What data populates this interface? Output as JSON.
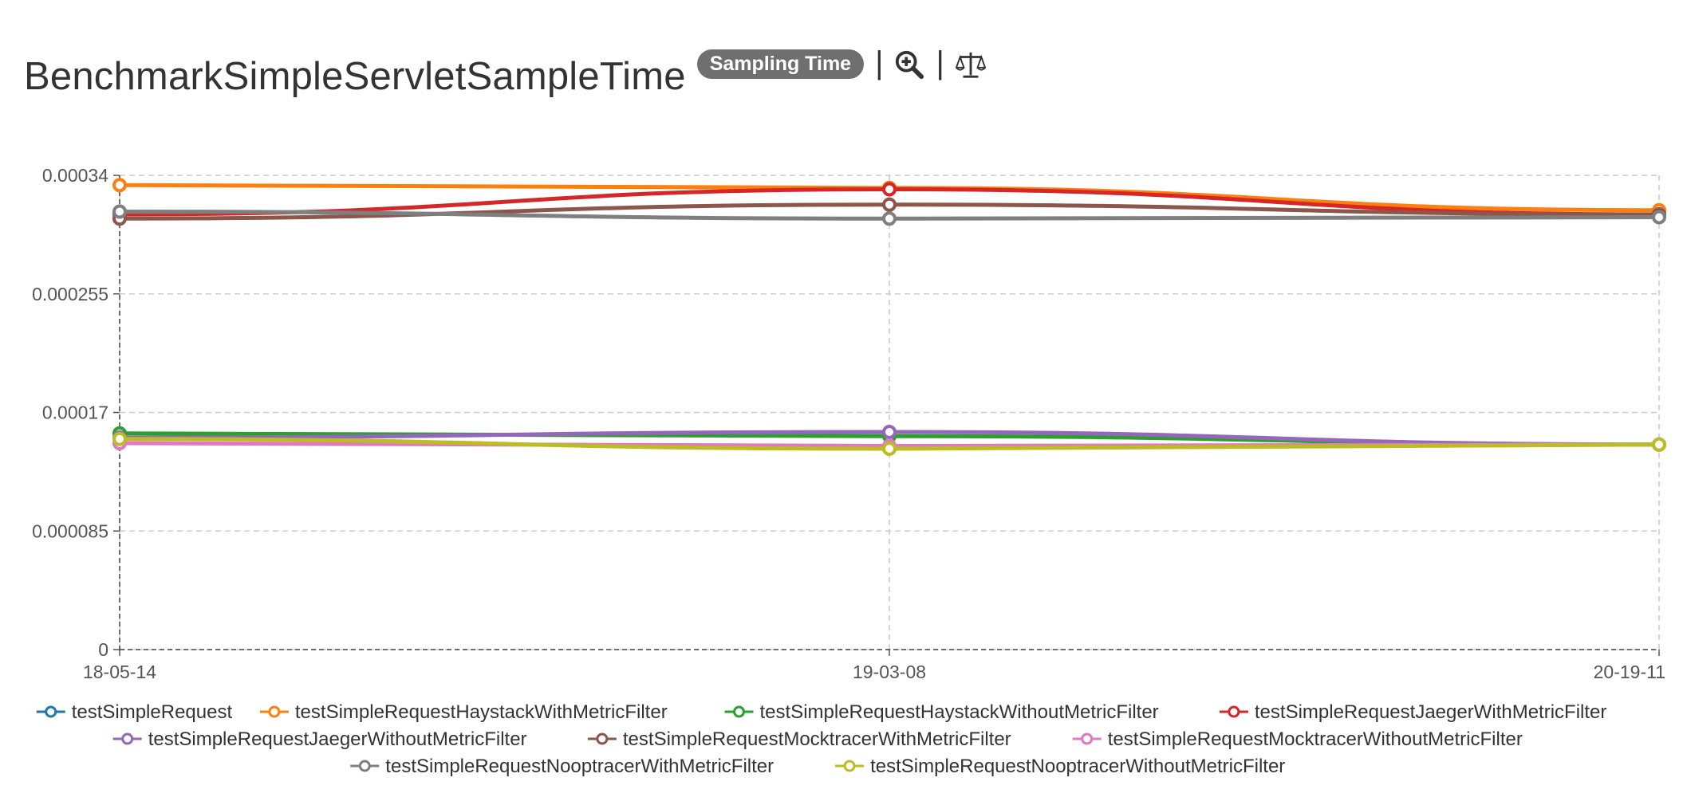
{
  "header": {
    "title": "BenchmarkSimpleServletSampleTime",
    "badge": "Sampling Time",
    "separator": "|",
    "zoom_icon": "zoom-in-icon",
    "compare_icon": "scale-balance-icon"
  },
  "chart_data": {
    "type": "line",
    "x": [
      "18-05-14",
      "19-03-08",
      "20-19-11"
    ],
    "ylim": [
      0,
      0.00034
    ],
    "yticks": [
      "0",
      "0.000085",
      "0.00017",
      "0.000255",
      "0.00034"
    ],
    "grid": true,
    "legend_position": "bottom",
    "series": [
      {
        "name": "testSimpleRequest",
        "color": "#1f77b4",
        "values": [
          null,
          null,
          null
        ]
      },
      {
        "name": "testSimpleRequestHaystackWithMetricFilter",
        "color": "#ff7f0e",
        "values": [
          0.000333,
          0.000331,
          0.000315
        ]
      },
      {
        "name": "testSimpleRequestHaystackWithoutMetricFilter",
        "color": "#2ca02c",
        "values": [
          0.000155,
          0.000153,
          0.000147
        ]
      },
      {
        "name": "testSimpleRequestJaegerWithMetricFilter",
        "color": "#d62728",
        "values": [
          0.000312,
          0.00033,
          0.000312
        ]
      },
      {
        "name": "testSimpleRequestJaegerWithoutMetricFilter",
        "color": "#9467bd",
        "values": [
          0.000152,
          0.000156,
          0.000147
        ]
      },
      {
        "name": "testSimpleRequestMocktracerWithMetricFilter",
        "color": "#8c564b",
        "values": [
          0.000309,
          0.000319,
          0.000312
        ]
      },
      {
        "name": "testSimpleRequestMocktracerWithoutMetricFilter",
        "color": "#e377c2",
        "values": [
          0.000148,
          0.000146,
          0.000147
        ]
      },
      {
        "name": "testSimpleRequestNooptracerWithMetricFilter",
        "color": "#7f7f7f",
        "values": [
          0.000314,
          0.000309,
          0.00031
        ]
      },
      {
        "name": "testSimpleRequestNooptracerWithoutMetricFilter",
        "color": "#bcbd22",
        "values": [
          0.000151,
          0.000144,
          0.000147
        ]
      }
    ]
  }
}
